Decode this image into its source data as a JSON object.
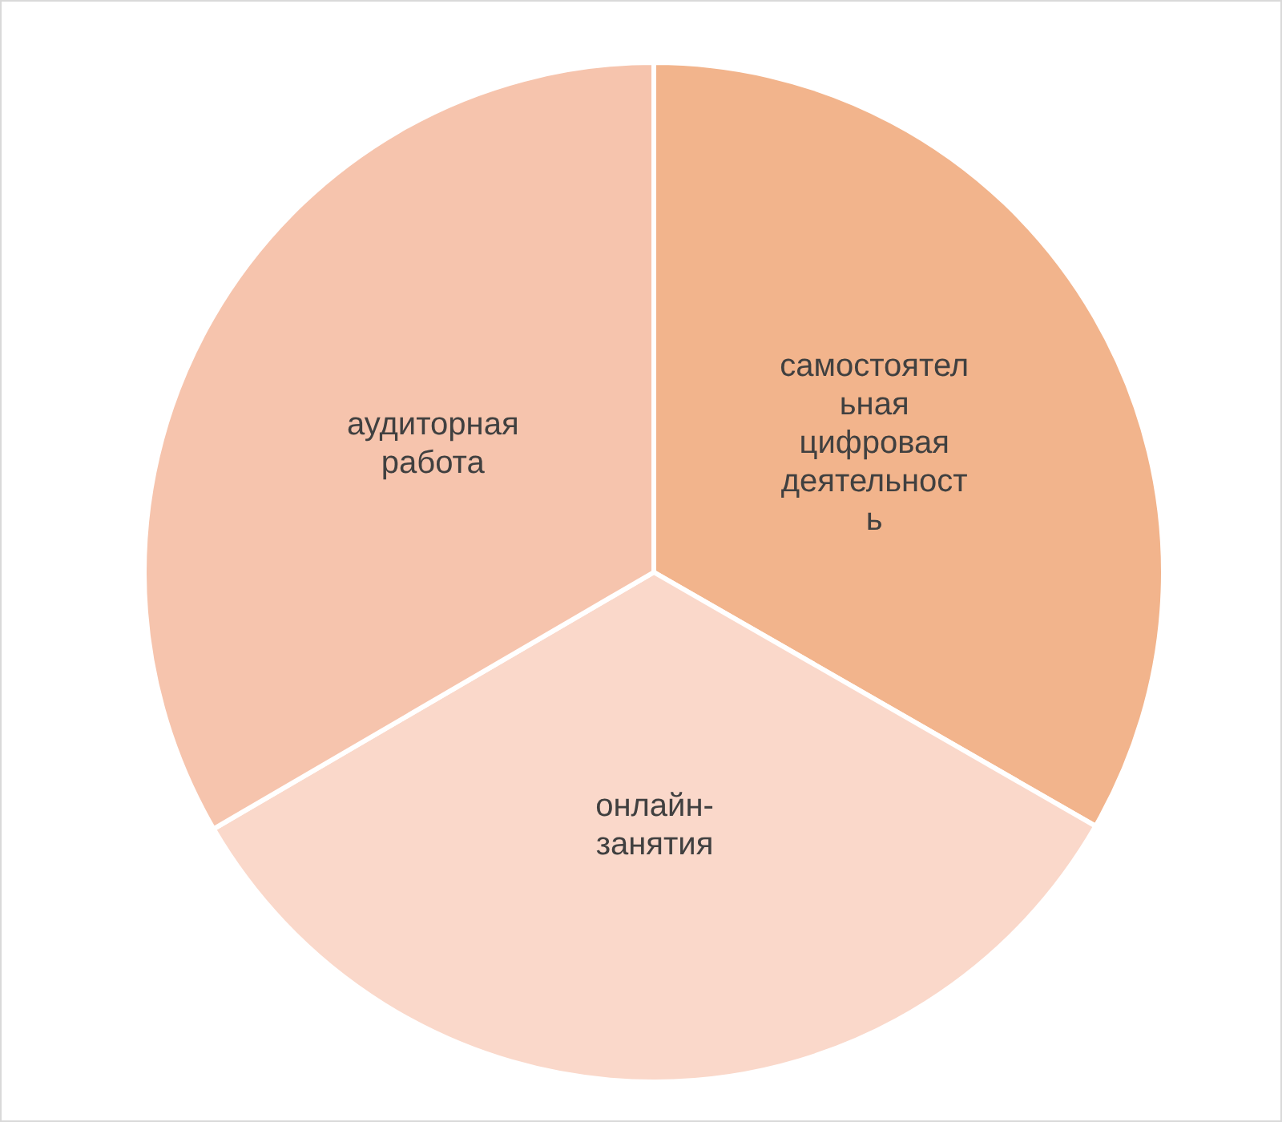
{
  "chart_data": {
    "type": "pie",
    "categories": [
      "самостоятельная цифровая деятельность",
      "онлайн-занятия",
      "аудиторная работа"
    ],
    "values": [
      33.3,
      33.3,
      33.4
    ],
    "colors": [
      "#f2b48c",
      "#fad8ca",
      "#f6c4ad"
    ]
  }
}
